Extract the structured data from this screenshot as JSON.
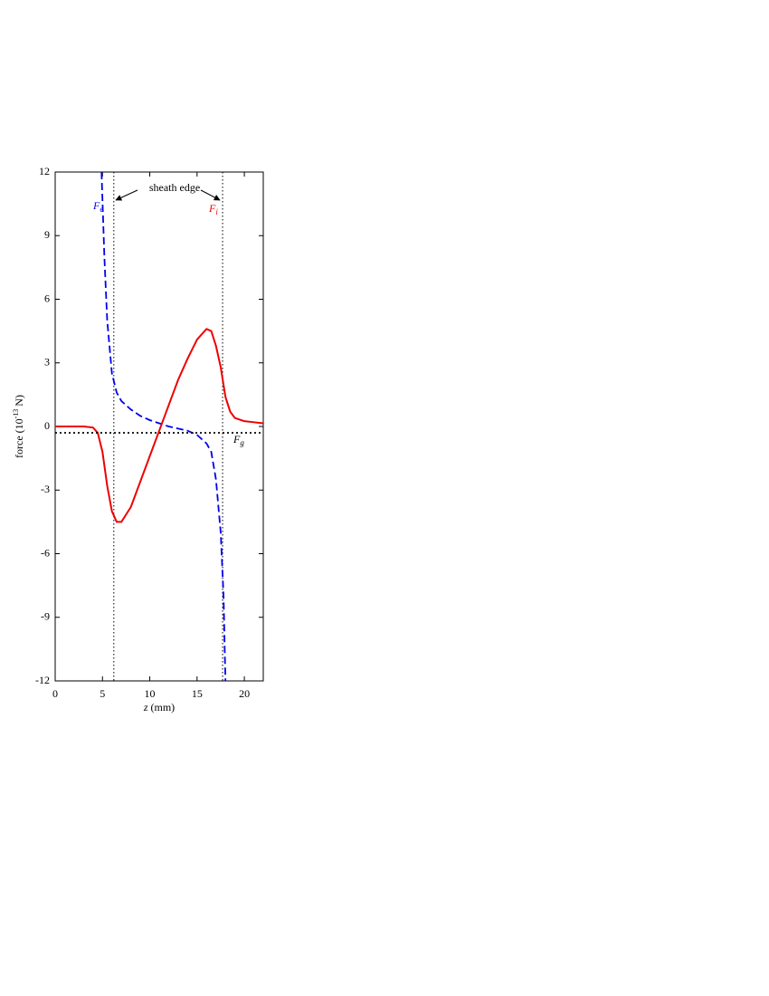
{
  "chart_data": {
    "type": "line",
    "x_label": {
      "var": "z",
      "unit": " (mm)"
    },
    "y_label": {
      "pre": "force (10",
      "sup": "-13",
      "post": " N)"
    },
    "xlim": [
      0,
      22
    ],
    "ylim": [
      -12,
      12
    ],
    "xticks": [
      0,
      5,
      10,
      15,
      20
    ],
    "yticks": [
      -12,
      -9,
      -6,
      -3,
      0,
      3,
      6,
      9,
      12
    ],
    "annotation": "sheath edge",
    "vlines": [
      6.2,
      17.7
    ],
    "series": [
      {
        "name": "F",
        "sub": "e",
        "color": "#0000ee",
        "dash": "dashed",
        "x": [
          4.9,
          5.2,
          5.5,
          6,
          6.5,
          7,
          8,
          9,
          10,
          11,
          12,
          13,
          14,
          15,
          16,
          16.5,
          17,
          17.5,
          17.8,
          18
        ],
        "values": [
          12,
          8,
          5,
          2.5,
          1.6,
          1.2,
          0.8,
          0.5,
          0.3,
          0.15,
          0,
          -0.1,
          -0.2,
          -0.4,
          -0.8,
          -1.2,
          -2.5,
          -5,
          -8,
          -12
        ]
      },
      {
        "name": "F",
        "sub": "i",
        "color": "#ee0000",
        "dash": "solid",
        "x": [
          0,
          1,
          2,
          3,
          4,
          4.5,
          5,
          5.5,
          6,
          6.5,
          7,
          8,
          9,
          10,
          11,
          12,
          13,
          14,
          15,
          16,
          16.5,
          17,
          17.5,
          18,
          18.5,
          19,
          20,
          21,
          22
        ],
        "values": [
          0,
          0,
          0,
          0,
          -0.05,
          -0.3,
          -1.2,
          -2.8,
          -4.0,
          -4.5,
          -4.5,
          -3.8,
          -2.6,
          -1.4,
          -0.2,
          1.0,
          2.2,
          3.2,
          4.1,
          4.6,
          4.5,
          3.8,
          2.8,
          1.4,
          0.7,
          0.4,
          0.25,
          0.2,
          0.15
        ]
      },
      {
        "name": "F",
        "sub": "g",
        "color": "#000000",
        "dash": "dotted",
        "x": [
          0,
          22
        ],
        "values": [
          -0.3,
          -0.3
        ]
      }
    ]
  }
}
